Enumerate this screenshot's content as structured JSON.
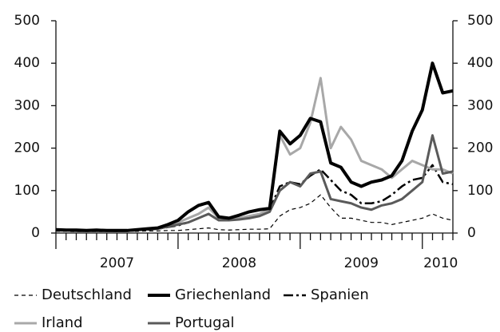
{
  "chart_data": {
    "type": "line",
    "x": [
      2007.0,
      2007.083,
      2007.167,
      2007.25,
      2007.333,
      2007.417,
      2007.5,
      2007.583,
      2007.667,
      2007.75,
      2007.833,
      2007.917,
      2008.0,
      2008.083,
      2008.167,
      2008.25,
      2008.333,
      2008.417,
      2008.5,
      2008.583,
      2008.667,
      2008.75,
      2008.833,
      2008.917,
      2009.0,
      2009.083,
      2009.167,
      2009.25,
      2009.333,
      2009.417,
      2009.5,
      2009.583,
      2009.667,
      2009.75,
      2009.833,
      2009.917,
      2010.0,
      2010.083,
      2010.167,
      2010.25
    ],
    "series": [
      {
        "name": "Deutschland",
        "color": "#000000",
        "width": 1.2,
        "dash": "5 4",
        "values": [
          4,
          4,
          3,
          4,
          3,
          4,
          3,
          4,
          4,
          5,
          5,
          6,
          6,
          8,
          10,
          12,
          8,
          7,
          8,
          9,
          9,
          10,
          40,
          55,
          60,
          70,
          90,
          60,
          35,
          35,
          30,
          25,
          25,
          20,
          25,
          30,
          35,
          45,
          35,
          30
        ]
      },
      {
        "name": "Griechenland",
        "color": "#000000",
        "width": 4,
        "dash": "none",
        "values": [
          8,
          7,
          7,
          6,
          7,
          6,
          6,
          6,
          8,
          10,
          12,
          20,
          30,
          50,
          65,
          72,
          38,
          35,
          42,
          50,
          55,
          58,
          240,
          210,
          230,
          270,
          262,
          165,
          155,
          120,
          110,
          120,
          125,
          135,
          170,
          240,
          290,
          400,
          330,
          335
        ]
      },
      {
        "name": "Spanien",
        "color": "#000000",
        "width": 2.5,
        "dash": "12 4 3 4",
        "values": [
          6,
          6,
          5,
          5,
          5,
          5,
          5,
          5,
          6,
          8,
          10,
          14,
          18,
          25,
          35,
          45,
          30,
          30,
          35,
          40,
          45,
          55,
          110,
          120,
          115,
          135,
          150,
          125,
          100,
          90,
          70,
          70,
          75,
          90,
          110,
          125,
          130,
          160,
          120,
          115
        ]
      },
      {
        "name": "Irland",
        "color": "#a8a8a8",
        "width": 3,
        "dash": "none",
        "values": [
          7,
          7,
          6,
          6,
          6,
          6,
          6,
          6,
          8,
          10,
          12,
          20,
          25,
          35,
          45,
          60,
          35,
          32,
          35,
          40,
          45,
          55,
          230,
          185,
          200,
          260,
          365,
          200,
          250,
          220,
          170,
          160,
          150,
          130,
          150,
          170,
          160,
          150,
          150,
          140
        ]
      },
      {
        "name": "Portugal",
        "color": "#5a5a5a",
        "width": 3,
        "dash": "none",
        "values": [
          6,
          6,
          5,
          5,
          5,
          5,
          5,
          5,
          7,
          9,
          10,
          15,
          20,
          25,
          35,
          45,
          30,
          30,
          32,
          35,
          40,
          50,
          100,
          120,
          110,
          140,
          145,
          80,
          75,
          70,
          60,
          55,
          65,
          70,
          80,
          100,
          120,
          230,
          140,
          145
        ]
      }
    ],
    "xlim": [
      2007,
      2010.25
    ],
    "xticks": [
      {
        "value": 2007.5,
        "label": "2007"
      },
      {
        "value": 2008.5,
        "label": "2008"
      },
      {
        "value": 2009.5,
        "label": "2009"
      },
      {
        "value": 2010.15,
        "label": "2010"
      }
    ],
    "ylim": [
      0,
      500
    ],
    "yticks": [
      0,
      100,
      200,
      300,
      400,
      500
    ],
    "y2lim": [
      0,
      500
    ],
    "y2ticks": [
      0,
      100,
      200,
      300,
      400,
      500
    ]
  }
}
